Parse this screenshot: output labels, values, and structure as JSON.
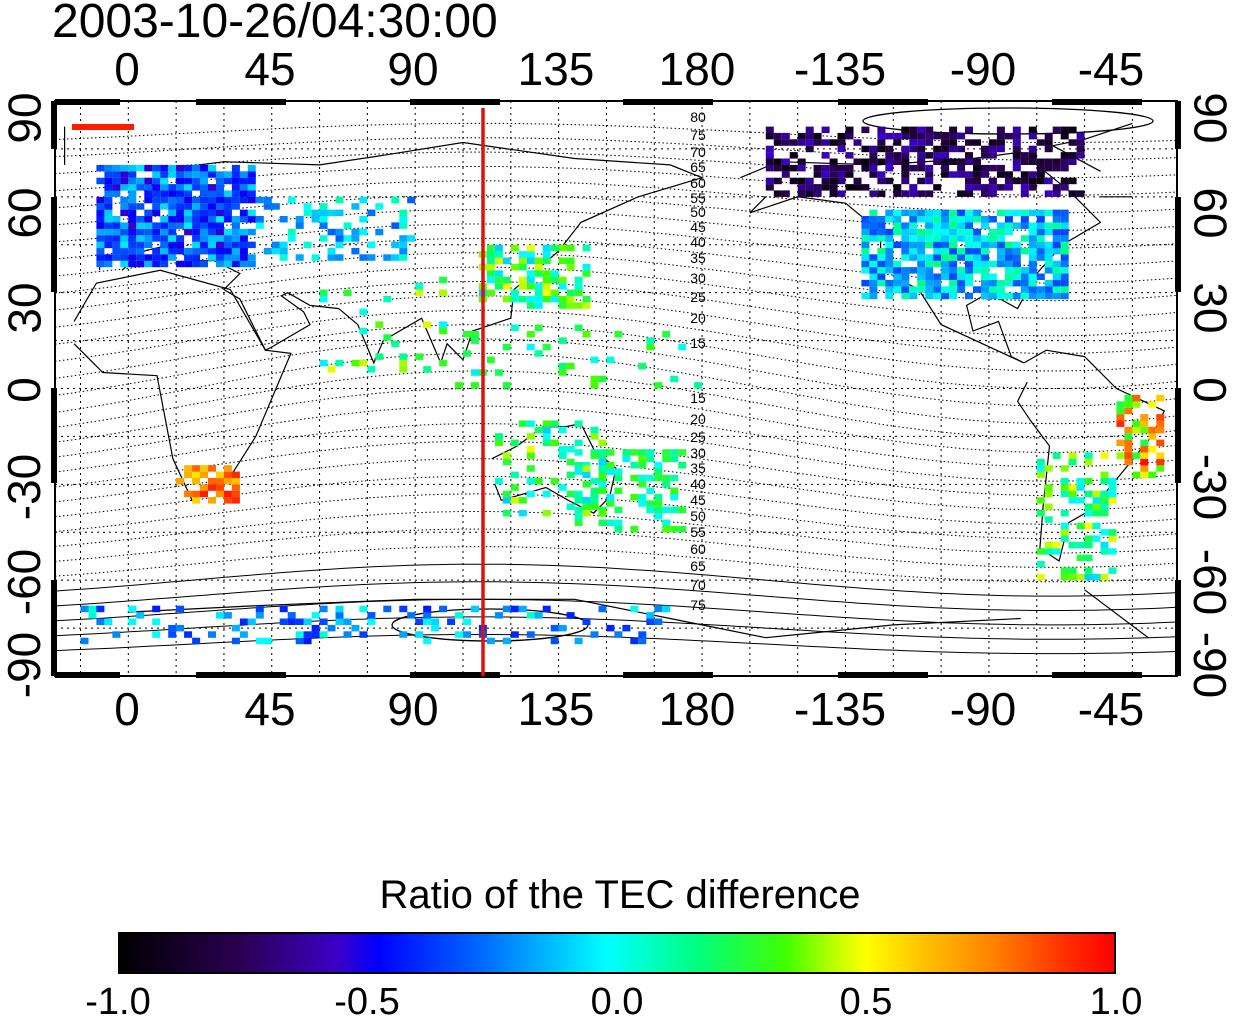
{
  "title": "2003-10-26/04:30:00",
  "lon_ticks": [
    "0",
    "45",
    "90",
    "135",
    "180",
    "-135",
    "-90",
    "-45"
  ],
  "lat_ticks_left": [
    "90",
    "60",
    "30",
    "0",
    "-30",
    "-60",
    "-90"
  ],
  "lat_ticks_right": [
    "90",
    "60",
    "30",
    "0",
    "-30",
    "-60",
    "-90"
  ],
  "contour_labels_north": [
    "80",
    "75",
    "70",
    "65",
    "60",
    "55",
    "50",
    "45",
    "40",
    "35",
    "30",
    "25",
    "20",
    "15"
  ],
  "contour_labels_south": [
    "15",
    "20",
    "25",
    "30",
    "35",
    "40",
    "45",
    "50",
    "55",
    "60",
    "65",
    "70",
    "75"
  ],
  "marker_line": {
    "longitude": 113,
    "color": "#e01010"
  },
  "colorbar": {
    "title": "Ratio of the TEC difference",
    "labels": [
      "-1.0",
      "-0.5",
      "0.0",
      "0.5",
      "1.0"
    ],
    "range": [
      -1.0,
      1.0
    ]
  },
  "colors": {
    "frame": "#000000",
    "grid": "#000000",
    "contour": "#000000"
  }
}
